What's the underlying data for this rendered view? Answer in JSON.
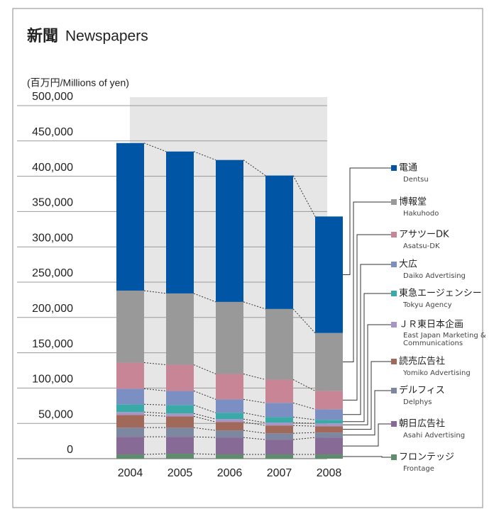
{
  "chart_data": {
    "type": "stacked_bar",
    "title": "新聞",
    "subtitle": "Newspapers",
    "unit_label": "(百万円/Millions of yen)",
    "categories": [
      "2004",
      "2005",
      "2006",
      "2007",
      "2008"
    ],
    "ylim": [
      0,
      500000
    ],
    "yticks": [
      0,
      {
        "value": 50000,
        "label": "50,000"
      },
      {
        "value": 100000,
        "label": "100,000"
      },
      {
        "value": 150000,
        "label": "150,000"
      },
      {
        "value": 200000,
        "label": "200,000"
      },
      {
        "value": 250000,
        "label": "250,000"
      },
      {
        "value": 300000,
        "label": "300,000"
      },
      {
        "value": 350000,
        "label": "350,000"
      },
      {
        "value": 400000,
        "label": "400,000"
      },
      {
        "value": 450000,
        "label": "450,000"
      },
      {
        "value": 500000,
        "label": "500,000"
      }
    ],
    "grid": true,
    "series": [
      {
        "name": "フロンテッジ",
        "name_en": "Frontage",
        "color": "#5e8d6e",
        "values": [
          6000,
          7000,
          6000,
          6000,
          6000
        ]
      },
      {
        "name": "朝日広告社",
        "name_en": "Asahi Advertising",
        "color": "#886a96",
        "values": [
          25000,
          24000,
          24000,
          21000,
          24000
        ]
      },
      {
        "name": "デルフィス",
        "name_en": "Delphys",
        "color": "#7d87a0",
        "values": [
          13000,
          13000,
          10000,
          9000,
          7000
        ]
      },
      {
        "name": "読売広告社",
        "name_en": "Yomiko Advertising",
        "color": "#a0695a",
        "values": [
          18000,
          16000,
          12000,
          11000,
          9000
        ]
      },
      {
        "name": "ＪＲ東日本企画",
        "name_en": [
          "East Japan Marketing &",
          "Communications"
        ],
        "color": "#a895c7",
        "values": [
          4000,
          4000,
          4000,
          4000,
          4000
        ]
      },
      {
        "name": "東急エージェンシー",
        "name_en": "Tokyu Agency",
        "color": "#3aaaa9",
        "values": [
          11000,
          12000,
          9000,
          8000,
          5000
        ]
      },
      {
        "name": "大広",
        "name_en": "Daiko Advertising",
        "color": "#7b8fc3",
        "values": [
          22000,
          20000,
          19000,
          20000,
          15000
        ]
      },
      {
        "name": "アサツーDK",
        "name_en": "Asatsu-DK",
        "color": "#c78595",
        "values": [
          37000,
          37000,
          36000,
          33000,
          26000
        ]
      },
      {
        "name": "博報堂",
        "name_en": "Hakuhodo",
        "color": "#999999",
        "values": [
          102000,
          101000,
          102000,
          100000,
          82000
        ]
      },
      {
        "name": "電通",
        "name_en": "Dentsu",
        "color": "#0055a5",
        "values": [
          209000,
          201000,
          201000,
          189000,
          165000
        ]
      }
    ]
  }
}
